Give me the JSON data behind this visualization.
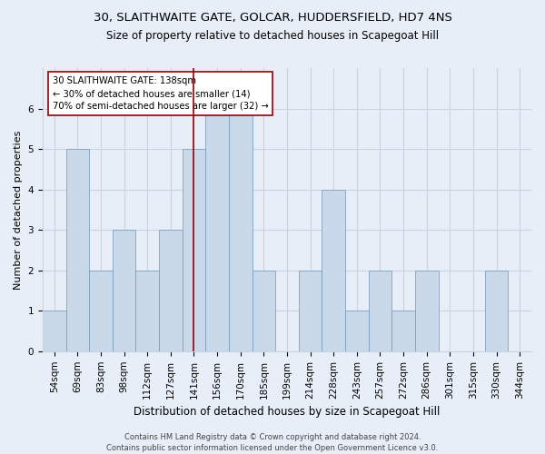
{
  "title1": "30, SLAITHWAITE GATE, GOLCAR, HUDDERSFIELD, HD7 4NS",
  "title2": "Size of property relative to detached houses in Scapegoat Hill",
  "xlabel": "Distribution of detached houses by size in Scapegoat Hill",
  "ylabel": "Number of detached properties",
  "categories": [
    "54sqm",
    "69sqm",
    "83sqm",
    "98sqm",
    "112sqm",
    "127sqm",
    "141sqm",
    "156sqm",
    "170sqm",
    "185sqm",
    "199sqm",
    "214sqm",
    "228sqm",
    "243sqm",
    "257sqm",
    "272sqm",
    "286sqm",
    "301sqm",
    "315sqm",
    "330sqm",
    "344sqm"
  ],
  "values": [
    1,
    5,
    2,
    3,
    2,
    3,
    5,
    6,
    6,
    2,
    0,
    2,
    4,
    1,
    2,
    1,
    2,
    0,
    0,
    2,
    0
  ],
  "bar_color": "#c9d9ea",
  "bar_edge_color": "#7096b8",
  "bar_edge_width": 0.5,
  "vline_x_idx": 6,
  "vline_color": "#990000",
  "annotation_text": "30 SLAITHWAITE GATE: 138sqm\n← 30% of detached houses are smaller (14)\n70% of semi-detached houses are larger (32) →",
  "annotation_box_color": "white",
  "annotation_box_edge_color": "#990000",
  "ylim": [
    0,
    7
  ],
  "yticks": [
    0,
    1,
    2,
    3,
    4,
    5,
    6
  ],
  "grid_color": "#c8d4e4",
  "footer": "Contains HM Land Registry data © Crown copyright and database right 2024.\nContains public sector information licensed under the Open Government Licence v3.0.",
  "bg_color": "#e8eef8",
  "plot_bg_color": "#e8eef8",
  "title1_fontsize": 9.5,
  "title2_fontsize": 8.5,
  "xlabel_fontsize": 8.5,
  "ylabel_fontsize": 8.0,
  "tick_fontsize": 7.5,
  "footer_fontsize": 6.0
}
